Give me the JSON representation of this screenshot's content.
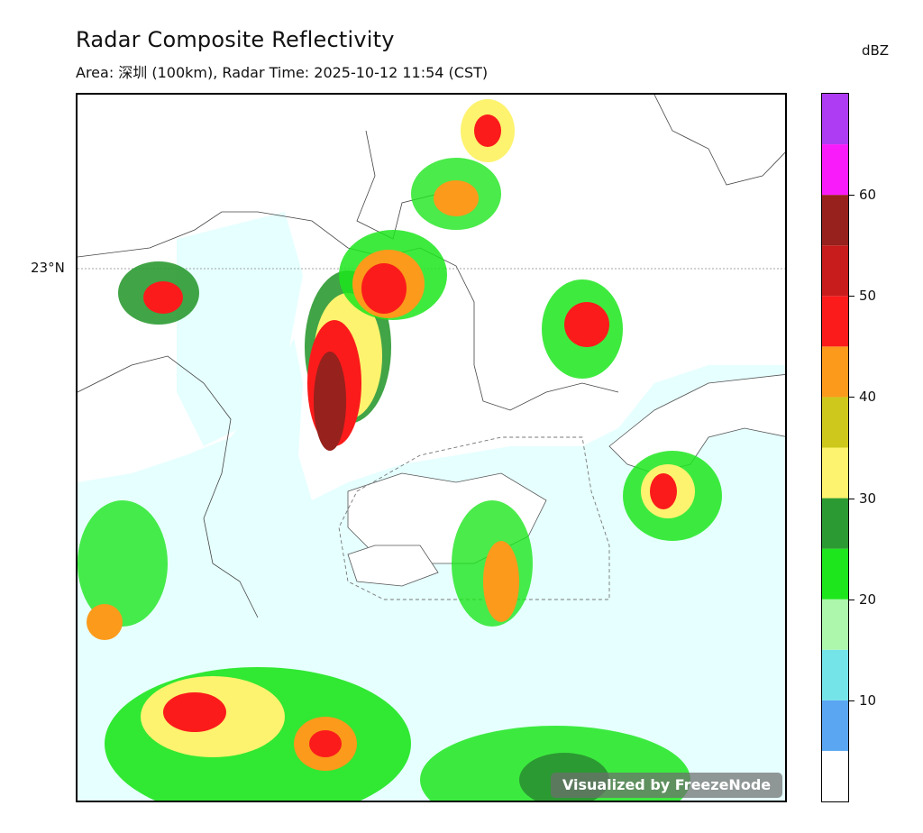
{
  "header": {
    "title": "Radar Composite Reflectivity",
    "subtitle": "Area: 深圳 (100km), Radar Time: 2025-10-12 11:54 (CST)"
  },
  "map": {
    "latitude_label": "23°N",
    "watermark": "Visualized by FreezeNode"
  },
  "legend": {
    "unit": "dBZ",
    "scale_min": 0,
    "scale_max": 70,
    "ticks": [
      "10",
      "20",
      "30",
      "40",
      "50",
      "60"
    ],
    "tick_values": [
      10,
      20,
      30,
      40,
      50,
      60
    ],
    "bins": [
      {
        "from": 0,
        "to": 5,
        "color": "#ffffff"
      },
      {
        "from": 5,
        "to": 10,
        "color": "#5aa6f2"
      },
      {
        "from": 10,
        "to": 15,
        "color": "#74e4e8"
      },
      {
        "from": 15,
        "to": 20,
        "color": "#acf7ac"
      },
      {
        "from": 20,
        "to": 25,
        "color": "#1de61d"
      },
      {
        "from": 25,
        "to": 30,
        "color": "#2c9a32"
      },
      {
        "from": 30,
        "to": 35,
        "color": "#fdf36e"
      },
      {
        "from": 35,
        "to": 40,
        "color": "#cdc81b"
      },
      {
        "from": 40,
        "to": 45,
        "color": "#fb9a1b"
      },
      {
        "from": 45,
        "to": 50,
        "color": "#fb1b1b"
      },
      {
        "from": 50,
        "to": 55,
        "color": "#c81b1b"
      },
      {
        "from": 55,
        "to": 60,
        "color": "#96211d"
      },
      {
        "from": 60,
        "to": 65,
        "color": "#fa1bfa"
      },
      {
        "from": 65,
        "to": 70,
        "color": "#ad3cf2"
      }
    ]
  }
}
